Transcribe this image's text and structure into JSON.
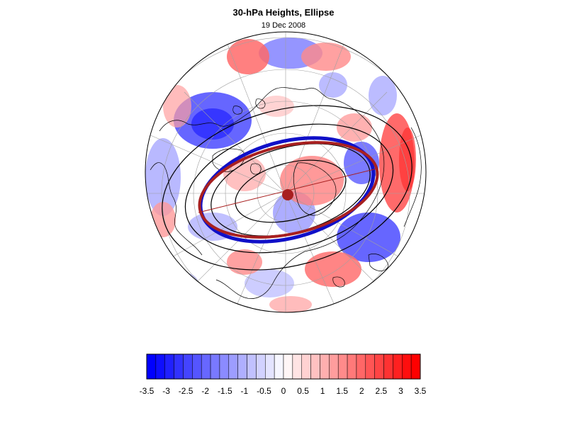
{
  "title": "30-hPa Heights, Ellipse",
  "subtitle": "19 Dec 2008",
  "map": {
    "projection": "polar stereographic, North Pole",
    "shading_colors": {
      "negative": "#0000ff",
      "positive": "#ff0000",
      "neutral": "#ffffff"
    },
    "height_contour_color": "#000000",
    "ellipse_blue_color": "#1010c8",
    "ellipse_red_color": "#a82020",
    "center_marker_color": "#a82020"
  },
  "colorbar": {
    "labels": [
      "-3.5",
      "-3",
      "-2.5",
      "-2",
      "-1.5",
      "-1",
      "-0.5",
      "0",
      "0.5",
      "1",
      "1.5",
      "2",
      "2.5",
      "3",
      "3.5"
    ],
    "min": -3.5,
    "max": 3.5,
    "bins": 30,
    "negative_color": "#0000ff",
    "positive_color": "#ff0000"
  }
}
